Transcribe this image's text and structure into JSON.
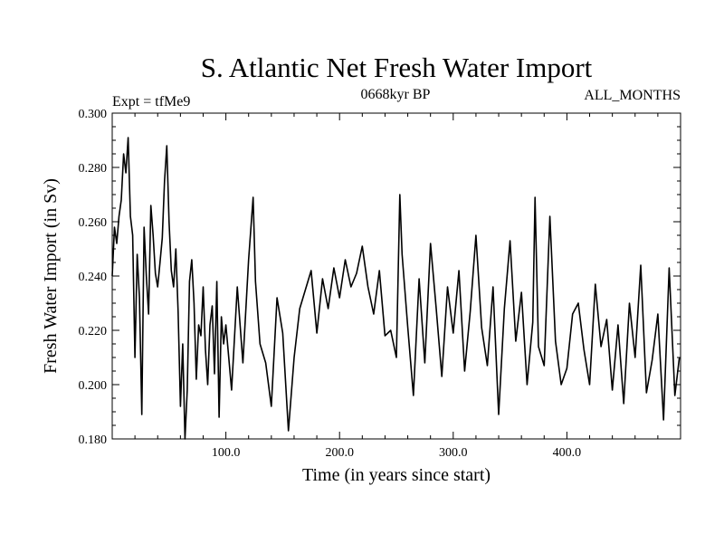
{
  "chart_data": {
    "type": "line",
    "title": "S. Atlantic Net Fresh Water Import",
    "subtitle_left": "Expt = tfMe9",
    "subtitle_center": "0668kyr BP",
    "subtitle_right": "ALL_MONTHS",
    "xlabel": "Time (in years since start)",
    "ylabel": "Fresh Water Import (in Sv)",
    "xlim": [
      0,
      500
    ],
    "ylim": [
      0.18,
      0.3
    ],
    "x_ticks": [
      100,
      200,
      300,
      400
    ],
    "x_tick_labels": [
      "100.0",
      "200.0",
      "300.0",
      "400.0"
    ],
    "y_ticks": [
      0.18,
      0.2,
      0.22,
      0.24,
      0.26,
      0.28,
      0.3
    ],
    "y_tick_labels": [
      "0.180",
      "0.200",
      "0.220",
      "0.240",
      "0.260",
      "0.280",
      "0.300"
    ],
    "grid": false,
    "series": [
      {
        "x": [
          0,
          2,
          4,
          6,
          8,
          10,
          12,
          14,
          16,
          18,
          20,
          22,
          24,
          26,
          28,
          30,
          32,
          34,
          36,
          38,
          40,
          42,
          44,
          46,
          48,
          50,
          52,
          54,
          56,
          58,
          60,
          62,
          64,
          66,
          68,
          70,
          72,
          74,
          76,
          78,
          80,
          82,
          84,
          86,
          88,
          90,
          92,
          94,
          96,
          98,
          100,
          105,
          110,
          115,
          120,
          124,
          126,
          130,
          135,
          140,
          145,
          150,
          155,
          160,
          165,
          170,
          175,
          180,
          185,
          190,
          195,
          200,
          205,
          210,
          215,
          220,
          225,
          230,
          235,
          240,
          245,
          250,
          253,
          255,
          260,
          265,
          270,
          275,
          280,
          285,
          290,
          295,
          300,
          305,
          310,
          315,
          320,
          325,
          330,
          335,
          340,
          345,
          350,
          355,
          360,
          365,
          370,
          372,
          375,
          380,
          385,
          390,
          395,
          400,
          405,
          410,
          415,
          420,
          425,
          430,
          435,
          440,
          445,
          450,
          455,
          460,
          465,
          470,
          475,
          480,
          485,
          490,
          495,
          499
        ],
        "y": [
          0.24,
          0.258,
          0.252,
          0.262,
          0.268,
          0.285,
          0.278,
          0.291,
          0.262,
          0.255,
          0.21,
          0.248,
          0.232,
          0.189,
          0.258,
          0.24,
          0.226,
          0.266,
          0.255,
          0.241,
          0.236,
          0.245,
          0.254,
          0.275,
          0.288,
          0.26,
          0.242,
          0.236,
          0.25,
          0.227,
          0.192,
          0.215,
          0.18,
          0.198,
          0.238,
          0.246,
          0.23,
          0.202,
          0.222,
          0.218,
          0.236,
          0.213,
          0.2,
          0.222,
          0.229,
          0.204,
          0.238,
          0.188,
          0.225,
          0.215,
          0.222,
          0.198,
          0.236,
          0.208,
          0.246,
          0.269,
          0.238,
          0.215,
          0.208,
          0.192,
          0.232,
          0.219,
          0.183,
          0.21,
          0.228,
          0.235,
          0.242,
          0.219,
          0.239,
          0.228,
          0.243,
          0.232,
          0.246,
          0.236,
          0.241,
          0.251,
          0.236,
          0.226,
          0.242,
          0.218,
          0.22,
          0.21,
          0.27,
          0.248,
          0.221,
          0.196,
          0.239,
          0.208,
          0.252,
          0.228,
          0.203,
          0.236,
          0.219,
          0.242,
          0.205,
          0.227,
          0.255,
          0.221,
          0.207,
          0.236,
          0.189,
          0.228,
          0.253,
          0.216,
          0.234,
          0.2,
          0.223,
          0.269,
          0.214,
          0.207,
          0.262,
          0.216,
          0.2,
          0.206,
          0.226,
          0.23,
          0.213,
          0.2,
          0.237,
          0.214,
          0.224,
          0.198,
          0.222,
          0.193,
          0.23,
          0.21,
          0.244,
          0.197,
          0.209,
          0.226,
          0.187,
          0.243,
          0.196,
          0.21
        ]
      }
    ]
  }
}
